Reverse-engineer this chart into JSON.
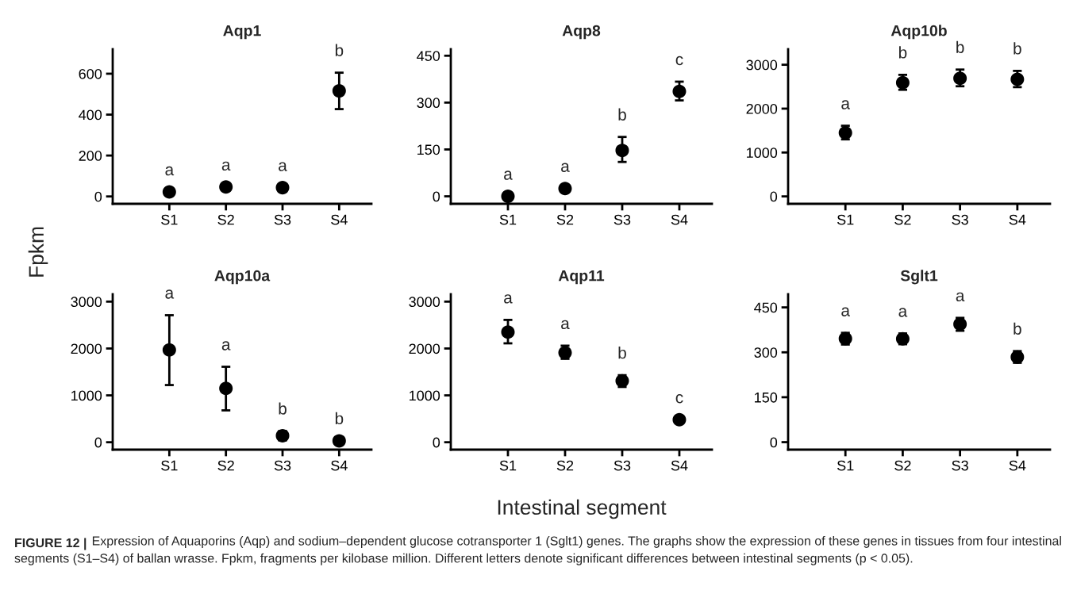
{
  "chart_data": [
    {
      "type": "scatter",
      "title": "Aqp1",
      "ylabel": "Fpkm",
      "categories": [
        "S1",
        "S2",
        "S3",
        "S4"
      ],
      "marker": "circle",
      "series": [
        {
          "color": "#000000",
          "values": [
            22,
            46,
            43,
            516
          ],
          "errors": [
            null,
            null,
            null,
            [
              427,
              605
            ]
          ],
          "value_labels": [
            "a",
            "a",
            "a",
            "b"
          ]
        }
      ],
      "ylim": [
        -36,
        720
      ],
      "yticks": [
        0,
        200,
        400,
        600
      ],
      "grid": false
    },
    {
      "type": "scatter",
      "title": "Aqp8",
      "categories": [
        "S1",
        "S2",
        "S3",
        "S4"
      ],
      "marker": "circle",
      "series": [
        {
          "color": "#000000",
          "values": [
            0,
            25,
            147,
            336
          ],
          "errors": [
            null,
            null,
            [
              110,
              190
            ],
            [
              307,
              367
            ]
          ],
          "value_labels": [
            "a",
            "a",
            "b",
            "c"
          ]
        }
      ],
      "ylim": [
        -24,
        471
      ],
      "yticks": [
        0,
        150,
        300,
        450
      ],
      "grid": false
    },
    {
      "type": "scatter",
      "title": "Aqp10b",
      "categories": [
        "S1",
        "S2",
        "S3",
        "S4"
      ],
      "marker": "circle",
      "series": [
        {
          "color": "#000000",
          "values": [
            1450,
            2590,
            2690,
            2670
          ],
          "errors": [
            [
              1300,
              1610
            ],
            [
              2430,
              2770
            ],
            [
              2510,
              2890
            ],
            [
              2490,
              2860
            ]
          ],
          "value_labels": [
            "a",
            "b",
            "b",
            "b"
          ]
        }
      ],
      "ylim": [
        -169,
        3355
      ],
      "yticks": [
        0,
        1000,
        2000,
        3000
      ],
      "grid": false
    },
    {
      "type": "scatter",
      "title": "Aqp10a",
      "categories": [
        "S1",
        "S2",
        "S3",
        "S4"
      ],
      "marker": "circle",
      "series": [
        {
          "color": "#000000",
          "values": [
            1970,
            1150,
            140,
            30
          ],
          "errors": [
            [
              1220,
              2710
            ],
            [
              680,
              1610
            ],
            [
              40,
              240
            ],
            null
          ],
          "value_labels": [
            "a",
            "a",
            "b",
            "b"
          ]
        }
      ],
      "ylim": [
        -158,
        3158
      ],
      "yticks": [
        0,
        1000,
        2000,
        3000
      ],
      "grid": false
    },
    {
      "type": "scatter",
      "title": "Aqp11",
      "xlabel": "Intestinal segment",
      "categories": [
        "S1",
        "S2",
        "S3",
        "S4"
      ],
      "marker": "circle",
      "series": [
        {
          "color": "#000000",
          "values": [
            2350,
            1910,
            1310,
            480
          ],
          "errors": [
            [
              2110,
              2610
            ],
            [
              1780,
              2060
            ],
            [
              1180,
              1430
            ],
            null
          ],
          "value_labels": [
            "a",
            "a",
            "b",
            "c"
          ]
        }
      ],
      "ylim": [
        -158,
        3158
      ],
      "yticks": [
        0,
        1000,
        2000,
        3000
      ],
      "grid": false
    },
    {
      "type": "scatter",
      "title": "Sglt1",
      "categories": [
        "S1",
        "S2",
        "S3",
        "S4"
      ],
      "marker": "circle",
      "series": [
        {
          "color": "#000000",
          "values": [
            346,
            345,
            394,
            284
          ],
          "errors": [
            [
              326,
              365
            ],
            [
              327,
              363
            ],
            [
              372,
              415
            ],
            [
              265,
              304
            ]
          ],
          "value_labels": [
            "a",
            "a",
            "a",
            "b"
          ]
        }
      ],
      "ylim": [
        -25,
        494
      ],
      "yticks": [
        0,
        150,
        300,
        450
      ],
      "grid": false,
      "annotations": [
        "FIGURE 12 |",
        "Expression of Aquaporins (Aqp) and sodium–dependent glucose cotransporter 1 (Sglt1) genes. The graphs show the expression of these genes in tissues from four intestinal segments (S1–S4) of ballan wrasse. Fpkm, fragments per kilobase million. Different letters denote significant differences between intestinal segments (p < 0.05)."
      ]
    }
  ]
}
